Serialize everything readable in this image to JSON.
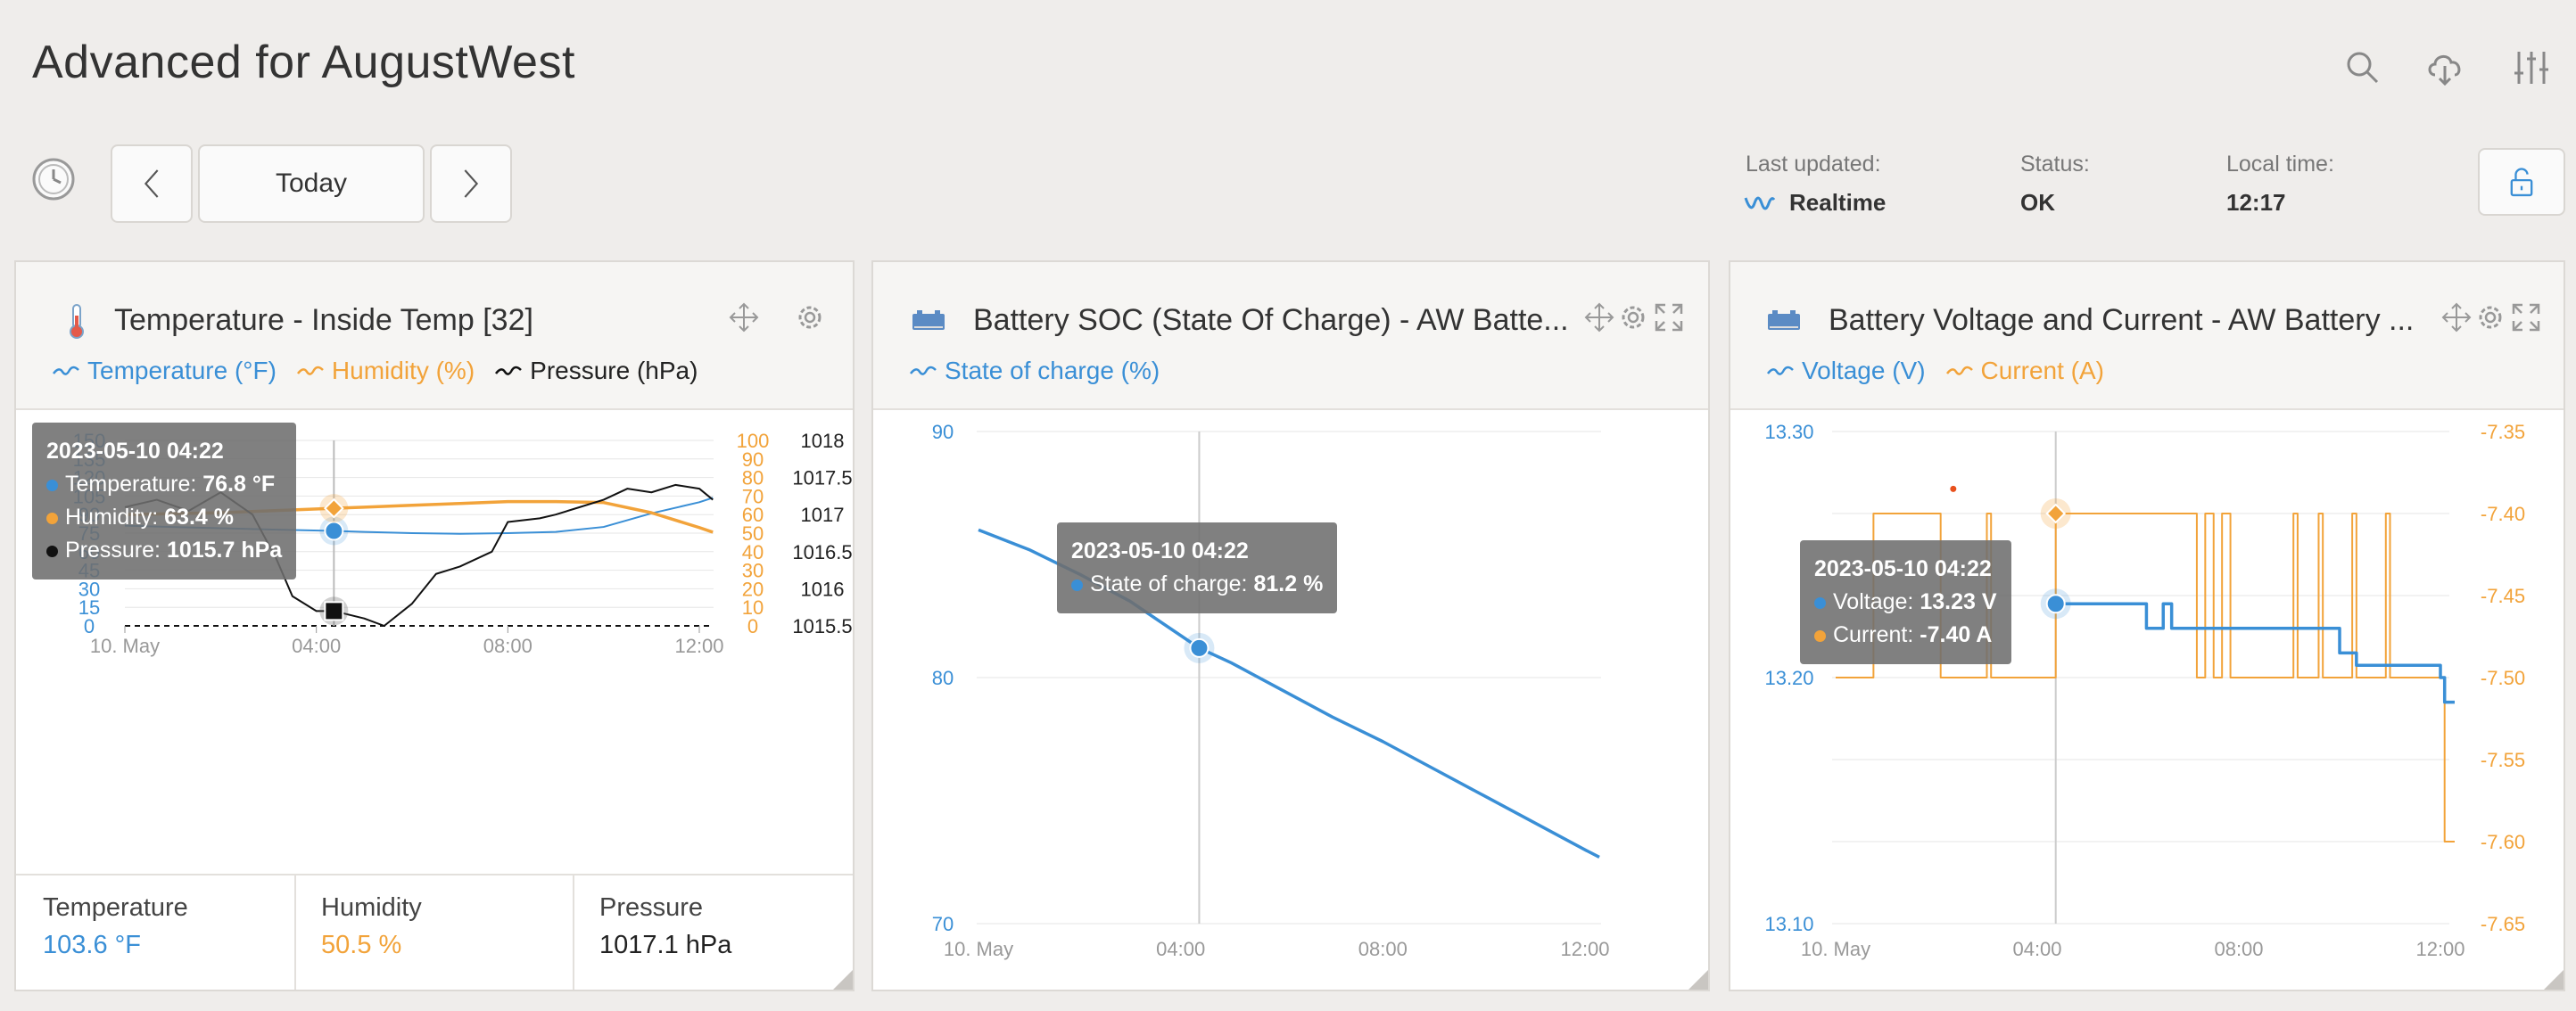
{
  "page": {
    "title": "Advanced for AugustWest"
  },
  "toolbar": {
    "icons": [
      "search-icon",
      "cloud-download-icon",
      "sliders-icon"
    ]
  },
  "nav": {
    "prev_icon": "chevron-left-icon",
    "date_label": "Today",
    "next_icon": "chevron-right-icon",
    "clock_icon": "clock-icon"
  },
  "status": {
    "last_updated_label": "Last updated:",
    "last_updated_value": "Realtime",
    "status_label": "Status:",
    "status_value": "OK",
    "local_time_label": "Local time:",
    "local_time_value": "12:17",
    "lock_icon": "unlock-icon"
  },
  "colors": {
    "blue": "#3a8fd6",
    "orange": "#f2a33a",
    "black": "#111111",
    "red_dot": "#e8501c"
  },
  "widgets": [
    {
      "title": "Temperature - Inside Temp [32]",
      "legend": [
        "Temperature (°F)",
        "Humidity (%)",
        "Pressure (hPa)"
      ],
      "tooltip": {
        "time": "2023-05-10 04:22",
        "rows": [
          {
            "label": "Temperature:",
            "value": "76.8 °F"
          },
          {
            "label": "Humidity:",
            "value": "63.4 %"
          },
          {
            "label": "Pressure:",
            "value": "1015.7 hPa"
          }
        ]
      },
      "summary": [
        {
          "label": "Temperature",
          "value": "103.6 °F"
        },
        {
          "label": "Humidity",
          "value": "50.5 %"
        },
        {
          "label": "Pressure",
          "value": "1017.1 hPa"
        }
      ]
    },
    {
      "title": "Battery SOC (State Of Charge) - AW Batte...",
      "legend": [
        "State of charge (%)"
      ],
      "tooltip": {
        "time": "2023-05-10 04:22",
        "rows": [
          {
            "label": "State of charge:",
            "value": "81.2 %"
          }
        ]
      }
    },
    {
      "title": "Battery Voltage and Current - AW Battery ...",
      "legend": [
        "Voltage (V)",
        "Current (A)"
      ],
      "tooltip": {
        "time": "2023-05-10 04:22",
        "rows": [
          {
            "label": "Voltage:",
            "value": "13.23 V"
          },
          {
            "label": "Current:",
            "value": "-7.40 A"
          }
        ]
      }
    }
  ],
  "chart_data": [
    {
      "type": "line",
      "x_ticks": [
        "10. May",
        "04:00",
        "08:00",
        "12:00"
      ],
      "y_left": {
        "ticks": [
          "0",
          "15",
          "30",
          "45",
          "60",
          "75",
          "90",
          "105",
          "120",
          "135",
          "150"
        ],
        "range": [
          0,
          150
        ],
        "unit": "°F"
      },
      "y_right1": {
        "ticks": [
          "0",
          "10",
          "20",
          "30",
          "40",
          "50",
          "60",
          "70",
          "80",
          "90",
          "100"
        ],
        "range": [
          0,
          100
        ],
        "unit": "%"
      },
      "y_right2": {
        "ticks": [
          "1015.5",
          "1016",
          "1016.5",
          "1017",
          "1017.5",
          "1018"
        ],
        "range": [
          1015.5,
          1018
        ],
        "unit": "hPa"
      },
      "series": [
        {
          "name": "Temperature (°F)",
          "axis": "left",
          "x": [
            "00:00",
            "01:00",
            "02:00",
            "03:00",
            "04:22",
            "05:00",
            "06:00",
            "07:00",
            "08:00",
            "09:00",
            "10:00",
            "11:00",
            "12:00",
            "12:17"
          ],
          "y": [
            81,
            80,
            79,
            78,
            76.8,
            76,
            75,
            74.5,
            75,
            76,
            80,
            91,
            100,
            103.6
          ]
        },
        {
          "name": "Humidity (%)",
          "axis": "right1",
          "x": [
            "00:00",
            "01:00",
            "02:00",
            "03:00",
            "04:22",
            "05:00",
            "06:00",
            "07:00",
            "08:00",
            "09:00",
            "10:00",
            "11:00",
            "12:00",
            "12:17"
          ],
          "y": [
            60,
            60.5,
            61,
            62,
            63.4,
            64,
            65,
            66,
            67,
            67,
            66.5,
            61,
            53,
            50.5
          ]
        },
        {
          "name": "Pressure (hPa)",
          "axis": "right2",
          "x": [
            "00:00",
            "00:40",
            "01:20",
            "02:00",
            "02:40",
            "03:10",
            "03:30",
            "04:00",
            "04:22",
            "05:00",
            "05:25",
            "06:00",
            "06:30",
            "07:00",
            "07:40",
            "08:00",
            "08:40",
            "09:00",
            "09:30",
            "10:00",
            "10:30",
            "11:00",
            "11:30",
            "12:00",
            "12:17"
          ],
          "y": [
            1017.1,
            1017.2,
            1017.05,
            1017.3,
            1017.0,
            1016.4,
            1015.9,
            1015.7,
            1015.7,
            1015.6,
            1015.5,
            1015.8,
            1016.2,
            1016.3,
            1016.5,
            1016.9,
            1016.95,
            1017.0,
            1017.1,
            1017.2,
            1017.35,
            1017.3,
            1017.4,
            1017.35,
            1017.2
          ]
        }
      ]
    },
    {
      "type": "line",
      "x_ticks": [
        "10. May",
        "04:00",
        "08:00",
        "12:00"
      ],
      "y_left": {
        "ticks": [
          "70",
          "80",
          "90"
        ],
        "range": [
          70,
          90
        ]
      },
      "series": [
        {
          "name": "State of charge (%)",
          "x": [
            "00:00",
            "01:00",
            "02:00",
            "03:00",
            "04:22",
            "05:00",
            "06:00",
            "07:00",
            "08:00",
            "09:00",
            "10:00",
            "11:00",
            "12:00",
            "12:17"
          ],
          "y": [
            86,
            85.2,
            84.2,
            83.1,
            81.2,
            80.6,
            79.5,
            78.4,
            77.4,
            76.3,
            75.2,
            74.1,
            73.0,
            72.7
          ]
        }
      ]
    },
    {
      "type": "line",
      "x_ticks": [
        "10. May",
        "04:00",
        "08:00",
        "12:00"
      ],
      "y_left": {
        "ticks": [
          "13.10",
          "13.20",
          "13.30"
        ],
        "range": [
          13.1,
          13.3
        ]
      },
      "y_right": {
        "ticks": [
          "-7.35",
          "-7.40",
          "-7.45",
          "-7.50",
          "-7.55",
          "-7.60",
          "-7.65"
        ],
        "range": [
          -7.65,
          -7.35
        ]
      },
      "series": [
        {
          "name": "Voltage (V)",
          "axis": "left",
          "x": [
            "04:22",
            "06:00",
            "06:10",
            "06:20",
            "06:30",
            "06:40",
            "07:00",
            "09:50",
            "10:00",
            "10:10",
            "10:20",
            "11:00",
            "12:00",
            "12:05",
            "12:17"
          ],
          "y": [
            13.23,
            13.23,
            13.22,
            13.22,
            13.23,
            13.22,
            13.22,
            13.22,
            13.21,
            13.21,
            13.205,
            13.205,
            13.2,
            13.19,
            13.19
          ]
        },
        {
          "name": "Current (A)",
          "axis": "right",
          "x": [
            "00:00",
            "00:40",
            "00:45",
            "02:00",
            "02:05",
            "03:00",
            "03:05",
            "04:22",
            "07:00",
            "07:10",
            "07:20",
            "07:30",
            "07:40",
            "07:50",
            "08:00",
            "09:00",
            "09:05",
            "09:10",
            "09:30",
            "09:35",
            "09:40",
            "10:10",
            "10:15",
            "10:20",
            "10:50",
            "10:55",
            "11:00",
            "12:00",
            "12:05",
            "12:17"
          ],
          "y": [
            -7.5,
            -7.5,
            -7.4,
            -7.4,
            -7.5,
            -7.4,
            -7.5,
            -7.4,
            -7.4,
            -7.5,
            -7.4,
            -7.5,
            -7.4,
            -7.5,
            -7.5,
            -7.5,
            -7.4,
            -7.5,
            -7.5,
            -7.4,
            -7.5,
            -7.5,
            -7.4,
            -7.5,
            -7.5,
            -7.4,
            -7.5,
            -7.5,
            -7.6,
            -7.6
          ]
        }
      ]
    }
  ]
}
